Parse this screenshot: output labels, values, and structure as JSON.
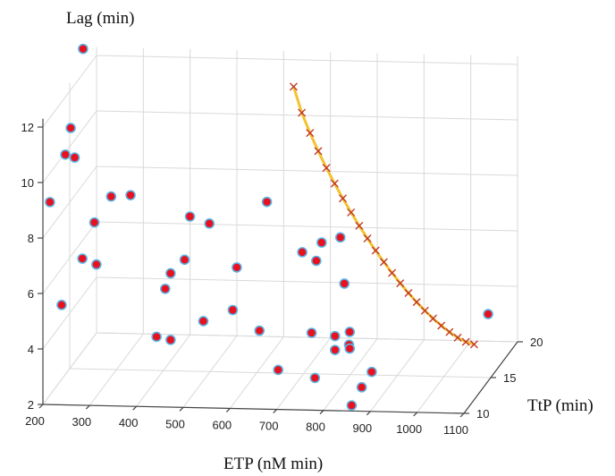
{
  "chart_data": {
    "type": "scatter3d",
    "xlabel": "ETP (nM min)",
    "ylabel": "TtP (min)",
    "zlabel": "Lag (min)",
    "x_ticks": [
      "200",
      "300",
      "400",
      "500",
      "600",
      "700",
      "800",
      "900",
      "1000",
      "1100"
    ],
    "y_ticks": [
      "10",
      "15",
      "20"
    ],
    "z_ticks": [
      "2",
      "4",
      "6",
      "8",
      "10",
      "12"
    ],
    "grid": true,
    "colors": {
      "point_fill": "#e8111f",
      "point_edge": "#5ab4e6",
      "curve": "#f2c230",
      "curve_mark": "#c0392b"
    },
    "points": [
      {
        "x": 240,
        "y": 14,
        "z": 13.8
      },
      {
        "x": 225,
        "y": 12,
        "z": 10.5
      },
      {
        "x": 225,
        "y": 13,
        "z": 11.2
      },
      {
        "x": 245,
        "y": 12,
        "z": 10.4
      },
      {
        "x": 215,
        "y": 10,
        "z": 9.3
      },
      {
        "x": 310,
        "y": 10,
        "z": 8.6
      },
      {
        "x": 300,
        "y": 14,
        "z": 8.5
      },
      {
        "x": 330,
        "y": 15,
        "z": 8.3
      },
      {
        "x": 250,
        "y": 13,
        "z": 6.5
      },
      {
        "x": 280,
        "y": 13,
        "z": 6.3
      },
      {
        "x": 240,
        "y": 10,
        "z": 5.6
      },
      {
        "x": 480,
        "y": 13,
        "z": 8.1
      },
      {
        "x": 510,
        "y": 14,
        "z": 7.6
      },
      {
        "x": 610,
        "y": 16,
        "z": 7.9
      },
      {
        "x": 480,
        "y": 12,
        "z": 6.8
      },
      {
        "x": 450,
        "y": 12,
        "z": 6.3
      },
      {
        "x": 450,
        "y": 11,
        "z": 6.0
      },
      {
        "x": 580,
        "y": 13,
        "z": 6.3
      },
      {
        "x": 720,
        "y": 13,
        "z": 6.9
      },
      {
        "x": 750,
        "y": 14,
        "z": 7.0
      },
      {
        "x": 750,
        "y": 13,
        "z": 6.6
      },
      {
        "x": 790,
        "y": 14,
        "z": 7.2
      },
      {
        "x": 810,
        "y": 13,
        "z": 5.8
      },
      {
        "x": 520,
        "y": 12,
        "z": 4.6
      },
      {
        "x": 560,
        "y": 14,
        "z": 4.5
      },
      {
        "x": 420,
        "y": 12,
        "z": 4.0
      },
      {
        "x": 450,
        "y": 12,
        "z": 3.9
      },
      {
        "x": 640,
        "y": 12,
        "z": 4.3
      },
      {
        "x": 740,
        "y": 13,
        "z": 4.0
      },
      {
        "x": 790,
        "y": 13,
        "z": 3.9
      },
      {
        "x": 810,
        "y": 14,
        "z": 3.8
      },
      {
        "x": 820,
        "y": 13,
        "z": 3.6
      },
      {
        "x": 790,
        "y": 13,
        "z": 3.4
      },
      {
        "x": 810,
        "y": 14,
        "z": 3.2
      },
      {
        "x": 680,
        "y": 12,
        "z": 2.9
      },
      {
        "x": 770,
        "y": 11,
        "z": 2.9
      },
      {
        "x": 880,
        "y": 12,
        "z": 2.9
      },
      {
        "x": 870,
        "y": 11,
        "z": 2.6
      },
      {
        "x": 860,
        "y": 10,
        "z": 2.2
      },
      {
        "x": 1060,
        "y": 18,
        "z": 3.5
      }
    ],
    "curve": [
      {
        "x": 690,
        "y": 14,
        "z": 12.6
      },
      {
        "x": 1030,
        "y": 18,
        "z": 2.4
      }
    ]
  }
}
